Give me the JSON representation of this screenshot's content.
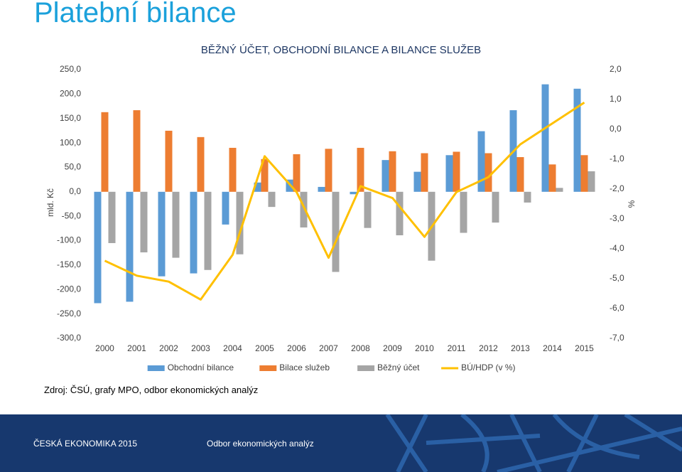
{
  "header": {
    "title": "Platební bilance"
  },
  "chart_data": {
    "type": "bar",
    "title": "BĚŽNÝ ÚČET, OBCHODNÍ BILANCE A BILANCE SLUŽEB",
    "ylabel": "mld. Kč",
    "y2label": "%",
    "categories": [
      "2000",
      "2001",
      "2002",
      "2003",
      "2004",
      "2005",
      "2006",
      "2007",
      "2008",
      "2009",
      "2010",
      "2011",
      "2012",
      "2013",
      "2014",
      "2015"
    ],
    "series": [
      {
        "name": "Obchodní bilance",
        "type": "bar",
        "color": "#5b9bd5",
        "values": [
          -228,
          -225,
          -173,
          -167,
          -67,
          19,
          25,
          10,
          -5,
          65,
          41,
          75,
          124,
          167,
          220,
          211
        ]
      },
      {
        "name": "Bilace služeb",
        "type": "bar",
        "color": "#ed7d31",
        "values": [
          163,
          167,
          125,
          112,
          90,
          67,
          77,
          88,
          90,
          83,
          79,
          82,
          79,
          71,
          56,
          75
        ]
      },
      {
        "name": "Běžný účet",
        "type": "bar",
        "color": "#a5a5a5",
        "values": [
          -105,
          -124,
          -135,
          -160,
          -128,
          -31,
          -73,
          -164,
          -74,
          -89,
          -141,
          -84,
          -63,
          -22,
          8,
          42
        ]
      },
      {
        "name": "BÚ/HDP (v %)",
        "type": "line",
        "axis": "y2",
        "color": "#ffc000",
        "values": [
          -4.4,
          -4.9,
          -5.1,
          -5.7,
          -4.2,
          -0.9,
          -2.1,
          -4.3,
          -1.9,
          -2.3,
          -3.6,
          -2.1,
          -1.6,
          -0.5,
          0.2,
          0.9
        ]
      }
    ],
    "ylim": [
      -300,
      250
    ],
    "yticks": [
      {
        "value": -300,
        "label": "-300,0"
      },
      {
        "value": -250,
        "label": "-250,0"
      },
      {
        "value": -200,
        "label": "-200,0"
      },
      {
        "value": -150,
        "label": "-150,0"
      },
      {
        "value": -100,
        "label": "-100,0"
      },
      {
        "value": -50,
        "label": "-50,0"
      },
      {
        "value": 0,
        "label": "0,0"
      },
      {
        "value": 50,
        "label": "50,0"
      },
      {
        "value": 100,
        "label": "100,0"
      },
      {
        "value": 150,
        "label": "150,0"
      },
      {
        "value": 200,
        "label": "200,0"
      },
      {
        "value": 250,
        "label": "250,0"
      }
    ],
    "y2lim": [
      -7,
      2
    ],
    "y2ticks": [
      {
        "value": -7,
        "label": "-7,0"
      },
      {
        "value": -6,
        "label": "-6,0"
      },
      {
        "value": -5,
        "label": "-5,0"
      },
      {
        "value": -4,
        "label": "-4,0"
      },
      {
        "value": -3,
        "label": "-3,0"
      },
      {
        "value": -2,
        "label": "-2,0"
      },
      {
        "value": -1,
        "label": "-1,0"
      },
      {
        "value": 0,
        "label": "0,0"
      },
      {
        "value": 1,
        "label": "1,0"
      },
      {
        "value": 2,
        "label": "2,0"
      }
    ],
    "grid": false,
    "legend": "bottom"
  },
  "source": "Zdroj: ČSÚ, grafy MPO, odbor ekonomických analýz",
  "footer": {
    "left": "ČESKÁ EKONOMIKA 2015",
    "right": "Odbor ekonomických analýz"
  }
}
